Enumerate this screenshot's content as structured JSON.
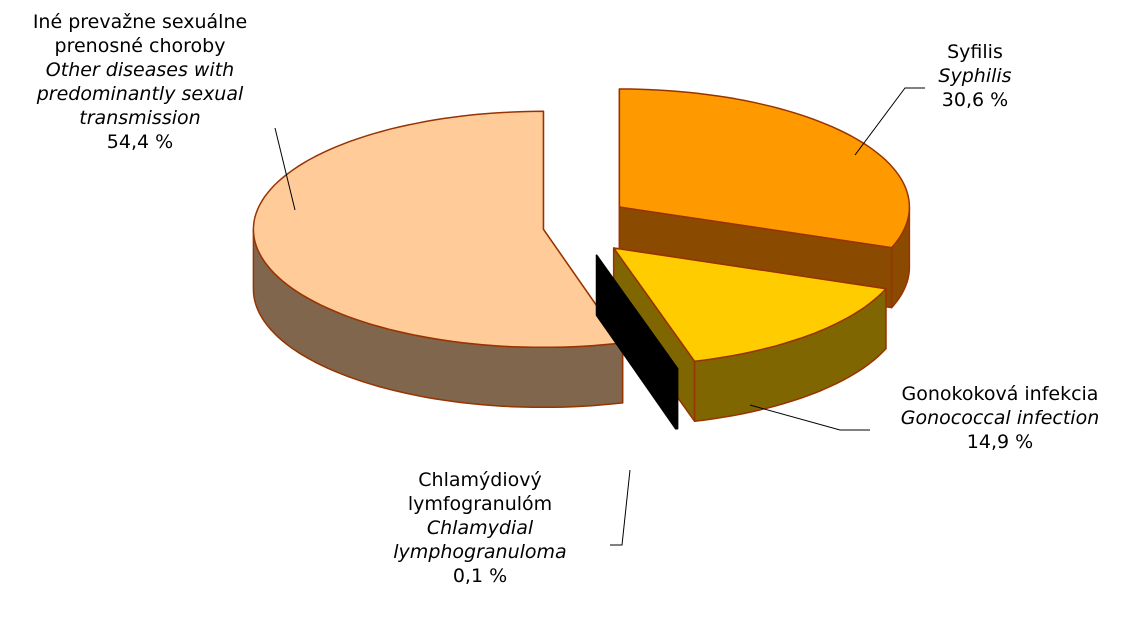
{
  "chart_data": {
    "type": "pie",
    "categories": [
      "Syfilis",
      "Gonokoková infekcia",
      "Chlamýdiový lymfogranulóm",
      "Iné prevažne sexuálne prenosné choroby"
    ],
    "categories_en": [
      "Syphilis",
      "Gonococcal infection",
      "Chlamydial lymphogranuloma",
      "Other diseases with predominantly sexual transmission"
    ],
    "values": [
      30.6,
      14.9,
      0.1,
      54.4
    ],
    "value_labels": [
      "30,6 %",
      "14,9 %",
      "0,1 %",
      "54,4 %"
    ],
    "colors": [
      "#ff9900",
      "#ffcc00",
      "#000000",
      "#ffcc99"
    ],
    "side_colors": [
      "#8a4a00",
      "#806600",
      "#000000",
      "#80664d"
    ]
  }
}
